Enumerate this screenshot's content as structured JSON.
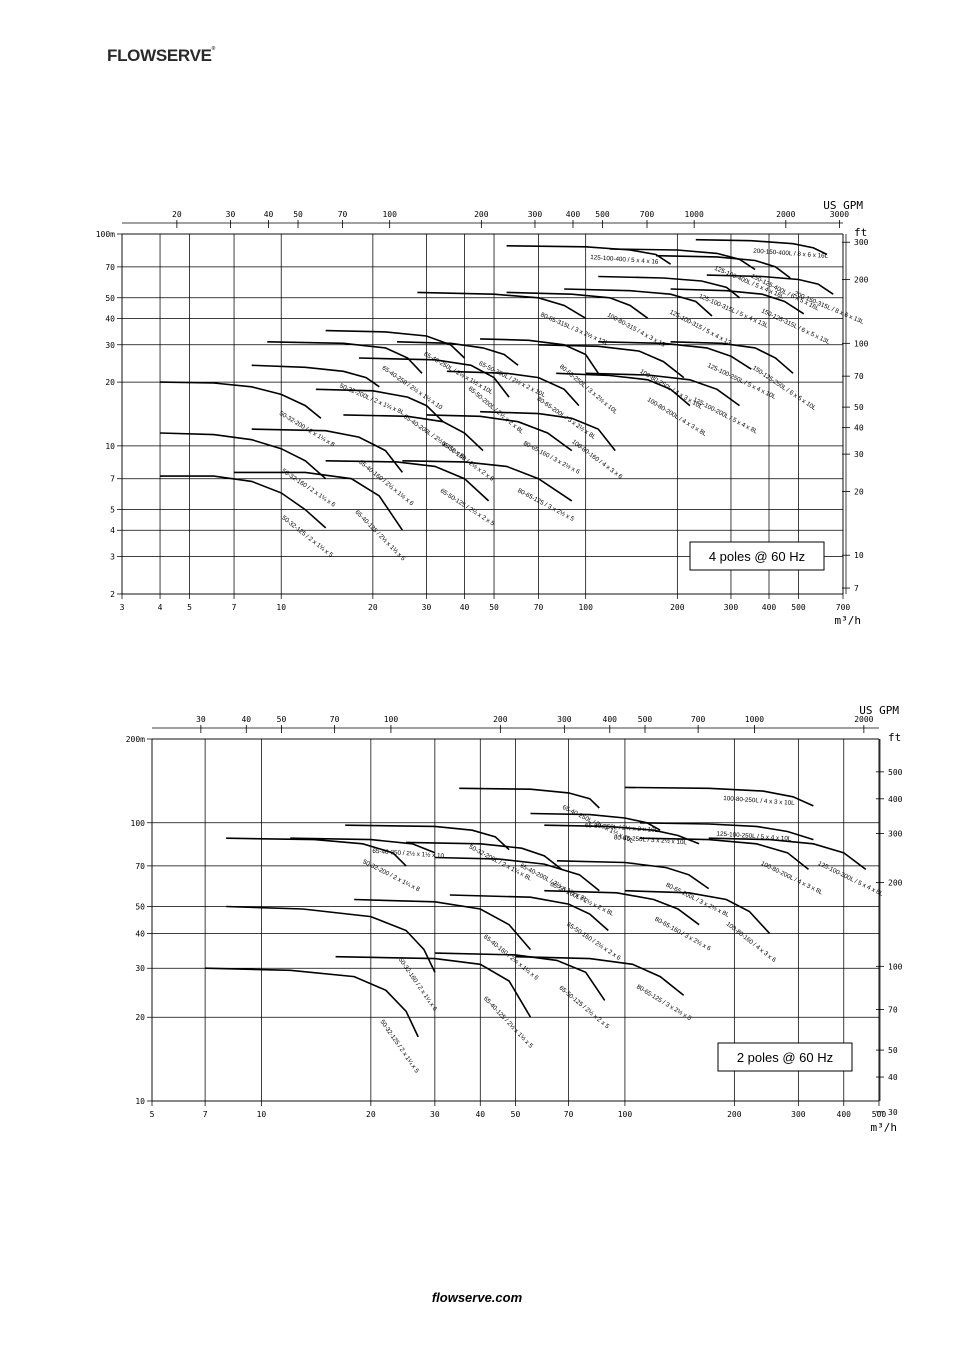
{
  "brand": "FLOWSERVE",
  "footer": "flowserve.com",
  "chart_data": [
    {
      "type": "line",
      "title": "4 poles @ 60 Hz",
      "xlabel": "m³/h",
      "ylabel": "m",
      "x2label": "US GPM",
      "y2label": "ft",
      "xscale": "log",
      "yscale": "log",
      "xlim": [
        3,
        700
      ],
      "ylim": [
        2,
        100
      ],
      "grid": true,
      "xticks": [
        3,
        4,
        5,
        7,
        10,
        20,
        30,
        40,
        50,
        70,
        100,
        200,
        300,
        400,
        500,
        700
      ],
      "yticks": [
        2,
        3,
        4,
        5,
        7,
        10,
        20,
        30,
        40,
        50,
        70,
        100
      ],
      "yticks_labels": [
        "2",
        "3",
        "4",
        "5",
        "7",
        "10",
        "20",
        "30",
        "40",
        "50",
        "70",
        "100m"
      ],
      "x2ticks": [
        20,
        30,
        40,
        50,
        70,
        100,
        200,
        300,
        400,
        500,
        700,
        1000,
        2000,
        3000
      ],
      "y2ticks": [
        7,
        10,
        20,
        30,
        40,
        50,
        70,
        100,
        200,
        300
      ],
      "series": [
        {
          "name": "50-32-125 / 2 x 1¼ x 5",
          "x": [
            4,
            6,
            8,
            10,
            12,
            14
          ],
          "y": [
            7.2,
            7.2,
            6.8,
            6,
            5,
            4.1
          ]
        },
        {
          "name": "50-32-160 / 2 x 1¼ x 6",
          "x": [
            4,
            6,
            8,
            10,
            12,
            14
          ],
          "y": [
            11.5,
            11.3,
            10.7,
            9.7,
            8.5,
            7
          ]
        },
        {
          "name": "50-32-200 / 2 x 1¼ x 8",
          "x": [
            4,
            6,
            8,
            10,
            12,
            13.5
          ],
          "y": [
            20,
            19.8,
            19,
            17.5,
            15.5,
            13.5
          ]
        },
        {
          "name": "50-32-200L / 2 x 1¼ x 8L",
          "x": [
            8,
            12,
            16,
            19,
            21
          ],
          "y": [
            24,
            23.5,
            22.5,
            21,
            19
          ]
        },
        {
          "name": "65-40-125 / 2½ x 1½ x 5",
          "x": [
            7,
            12,
            17,
            21,
            25
          ],
          "y": [
            7.5,
            7.5,
            7,
            5.8,
            4
          ]
        },
        {
          "name": "65-40-160 / 2½ x 1½ x 6",
          "x": [
            8,
            14,
            18,
            22,
            25
          ],
          "y": [
            12,
            11.8,
            11,
            9.5,
            7.5
          ]
        },
        {
          "name": "65-40-200L / 2½ x 1½ x 8L",
          "x": [
            13,
            20,
            26,
            30,
            34
          ],
          "y": [
            18.5,
            18.2,
            17,
            15.5,
            13
          ]
        },
        {
          "name": "65-40-250 / 2½ x 1½ x 10",
          "x": [
            9,
            16,
            22,
            26,
            29
          ],
          "y": [
            31,
            30.5,
            29,
            26,
            22
          ]
        },
        {
          "name": "65-40-250L / 2½ x 1½ x 10L",
          "x": [
            14,
            22,
            30,
            36,
            40
          ],
          "y": [
            35,
            34.5,
            33,
            30,
            26
          ]
        },
        {
          "name": "65-50-125 / 2½ x 2 x 5",
          "x": [
            14,
            24,
            32,
            40,
            48
          ],
          "y": [
            8.5,
            8.4,
            8,
            7,
            5.5
          ]
        },
        {
          "name": "65-50-160 / 2½ x 2 x 6",
          "x": [
            16,
            26,
            34,
            40,
            46
          ],
          "y": [
            14,
            13.8,
            13,
            11.5,
            9.5
          ]
        },
        {
          "name": "65-50-200L / 2½ x 2 x 8L",
          "x": [
            18,
            32,
            42,
            50,
            56
          ],
          "y": [
            26,
            25.5,
            24,
            21,
            17
          ]
        },
        {
          "name": "65-50-250L / 2½ x 2 x 10L",
          "x": [
            24,
            36,
            46,
            54,
            60
          ],
          "y": [
            31,
            30.5,
            29,
            27,
            24
          ]
        },
        {
          "name": "80-65-125 / 3 x 2½ x 5",
          "x": [
            25,
            40,
            55,
            70,
            90
          ],
          "y": [
            8.5,
            8.4,
            8,
            7,
            5.5
          ]
        },
        {
          "name": "80-65-160 / 3 x 2½ x 6",
          "x": [
            30,
            45,
            60,
            75,
            90
          ],
          "y": [
            14,
            13.8,
            13,
            11.5,
            9.5
          ]
        },
        {
          "name": "80-65-200L / 3 x 2½ x 8L",
          "x": [
            35,
            55,
            70,
            85,
            95
          ],
          "y": [
            22.5,
            22,
            21,
            18.5,
            15.5
          ]
        },
        {
          "name": "80-65-250L / 3 x 2½ x 10L",
          "x": [
            45,
            65,
            85,
            100,
            110
          ],
          "y": [
            32,
            31.5,
            30,
            27,
            22
          ]
        },
        {
          "name": "80-65-315L / 3 x 2½ x 13L",
          "x": [
            28,
            50,
            70,
            85,
            100
          ],
          "y": [
            53,
            52,
            50,
            46,
            40
          ]
        },
        {
          "name": "100-80-160 / 4 x 3 x 6",
          "x": [
            45,
            70,
            90,
            110,
            125
          ],
          "y": [
            14.5,
            14.2,
            13.5,
            12,
            9.5
          ]
        },
        {
          "name": "100-80-250L / 4 x 3 x 10L",
          "x": [
            70,
            110,
            150,
            180,
            210
          ],
          "y": [
            30,
            29.5,
            28,
            25,
            21
          ]
        },
        {
          "name": "100-80-315 / 4 x 3 x 13",
          "x": [
            55,
            90,
            120,
            140,
            160
          ],
          "y": [
            53,
            52,
            50,
            46,
            40
          ]
        },
        {
          "name": "100-80-200L / 4 x 3 x 8L",
          "x": [
            80,
            120,
            160,
            190,
            220
          ],
          "y": [
            22,
            21.5,
            20.5,
            18.5,
            15.5
          ]
        },
        {
          "name": "125-100-200L / 5 x 4 x 8L",
          "x": [
            100,
            160,
            220,
            270,
            320
          ],
          "y": [
            22,
            21.6,
            20.5,
            18.5,
            15.5
          ]
        },
        {
          "name": "125-100-250L / 5 x 4 x 10L",
          "x": [
            110,
            180,
            250,
            300,
            350
          ],
          "y": [
            31,
            30.5,
            29,
            26.5,
            23
          ]
        },
        {
          "name": "125-100-315 / 5 x 4 x 13",
          "x": [
            85,
            140,
            190,
            230,
            260
          ],
          "y": [
            55,
            54,
            52,
            48,
            41
          ]
        },
        {
          "name": "125-100-315L / 5 x 4 x 13L",
          "x": [
            110,
            180,
            240,
            290,
            320
          ],
          "y": [
            63,
            62,
            60,
            56,
            50
          ]
        },
        {
          "name": "125-100-400 / 5 x 4 x 16",
          "x": [
            55,
            100,
            140,
            170,
            190
          ],
          "y": [
            88,
            87,
            84,
            80,
            72
          ]
        },
        {
          "name": "125-100-400L / 5 x 4 x 16L",
          "x": [
            120,
            200,
            270,
            320,
            360
          ],
          "y": [
            85,
            84,
            81,
            76,
            68
          ]
        },
        {
          "name": "150-125-250L / 6 x 5 x 10L",
          "x": [
            190,
            280,
            360,
            420,
            480
          ],
          "y": [
            31,
            30.5,
            29,
            26,
            22
          ]
        },
        {
          "name": "150-125-315L / 6 x 5 x 13L",
          "x": [
            190,
            290,
            380,
            450,
            520
          ],
          "y": [
            55,
            54,
            52,
            48,
            42
          ]
        },
        {
          "name": "150-125-400L / 6 x 5 x 16L",
          "x": [
            170,
            270,
            360,
            420,
            470
          ],
          "y": [
            79,
            78,
            75,
            70,
            62
          ]
        },
        {
          "name": "200-150-315L / 8 x 6 x 13L",
          "x": [
            250,
            380,
            500,
            580,
            650
          ],
          "y": [
            64,
            63,
            61,
            58,
            52
          ]
        },
        {
          "name": "200-150-400L / 8 x 6 x 16L",
          "x": [
            230,
            350,
            480,
            560,
            620
          ],
          "y": [
            94,
            93,
            90,
            86,
            80
          ]
        }
      ]
    },
    {
      "type": "line",
      "title": "2 poles @ 60 Hz",
      "xlabel": "m³/h",
      "ylabel": "m",
      "x2label": "US GPM",
      "y2label": "ft",
      "xscale": "log",
      "yscale": "log",
      "xlim": [
        5,
        500
      ],
      "ylim": [
        10,
        200
      ],
      "grid": true,
      "xticks": [
        5,
        7,
        10,
        20,
        30,
        40,
        50,
        70,
        100,
        200,
        300,
        400,
        500
      ],
      "yticks": [
        10,
        20,
        30,
        40,
        50,
        70,
        100,
        200
      ],
      "yticks_labels": [
        "10",
        "20",
        "30",
        "40",
        "50",
        "70",
        "100",
        "200m"
      ],
      "x2ticks": [
        30,
        40,
        50,
        70,
        100,
        200,
        300,
        400,
        500,
        700,
        1000,
        2000
      ],
      "y2ticks": [
        30,
        40,
        50,
        70,
        100,
        200,
        300,
        400,
        500
      ],
      "series": [
        {
          "name": "50-32-125 / 2 x 1¼ x 5",
          "x": [
            7,
            12,
            18,
            22,
            25,
            27
          ],
          "y": [
            30,
            29.5,
            28,
            25,
            21,
            17
          ]
        },
        {
          "name": "50-32-160 / 2 x 1¼ x 6",
          "x": [
            8,
            13,
            20,
            25,
            28,
            30
          ],
          "y": [
            50,
            49,
            46,
            41,
            35,
            29
          ]
        },
        {
          "name": "50-32-200 / 2 x 1¼ x 8",
          "x": [
            8,
            14,
            19,
            23,
            25
          ],
          "y": [
            88,
            87,
            84,
            78,
            70
          ]
        },
        {
          "name": "50-32-200L / 2 x 1¼ x 8L",
          "x": [
            17,
            30,
            38,
            44,
            48
          ],
          "y": [
            98,
            97,
            94,
            89,
            80
          ]
        },
        {
          "name": "65-40-125 / 2½ x 1½ x 5",
          "x": [
            16,
            30,
            40,
            48,
            55
          ],
          "y": [
            33,
            32.5,
            31,
            27,
            20
          ]
        },
        {
          "name": "65-40-160 / 2½ x 1½ x 6",
          "x": [
            18,
            30,
            40,
            48,
            55
          ],
          "y": [
            53,
            52,
            49,
            43,
            35
          ]
        },
        {
          "name": "65-40-200L / 2½ x 1½ x 8L",
          "x": [
            25,
            40,
            52,
            60,
            67
          ],
          "y": [
            85,
            84,
            81,
            76,
            68
          ]
        },
        {
          "name": "65-40-250 / 2½ x 1½ x 10",
          "x": [
            12,
            20,
            26,
            30
          ],
          "y": [
            88,
            87,
            84,
            78
          ]
        },
        {
          "name": "65-40-250L / 2½ x 1½ x 10L",
          "x": [
            35,
            55,
            70,
            80,
            85
          ],
          "y": [
            133,
            132,
            128,
            122,
            113
          ]
        },
        {
          "name": "65-50-125 / 2½ x 2 x 5",
          "x": [
            30,
            50,
            65,
            78,
            88
          ],
          "y": [
            34,
            33.5,
            32,
            29,
            23
          ]
        },
        {
          "name": "65-50-160 / 2½ x 2 x 6",
          "x": [
            33,
            55,
            70,
            80,
            90
          ],
          "y": [
            55,
            54,
            51,
            47,
            41
          ]
        },
        {
          "name": "65-50-200L / 2½ x 2 x 8L",
          "x": [
            30,
            45,
            60,
            75,
            85
          ],
          "y": [
            75,
            74,
            71,
            65,
            57
          ]
        },
        {
          "name": "65-50-250L / 2½ x 2 x 10L",
          "x": [
            55,
            80,
            100,
            115,
            125
          ],
          "y": [
            108,
            107,
            104,
            100,
            94
          ]
        },
        {
          "name": "80-65-125 / 3 x 2½ x 5",
          "x": [
            50,
            80,
            105,
            125,
            145
          ],
          "y": [
            33,
            32.5,
            31,
            28,
            24
          ]
        },
        {
          "name": "80-65-160 / 3 x 2½ x 6",
          "x": [
            60,
            95,
            120,
            140,
            160
          ],
          "y": [
            57,
            56,
            53,
            49,
            43
          ]
        },
        {
          "name": "80-65-200L / 3 x 2½ x 8L",
          "x": [
            65,
            100,
            130,
            150,
            170
          ],
          "y": [
            73,
            72,
            69,
            65,
            58
          ]
        },
        {
          "name": "80-65-250L / 3 x 2½ x 10L",
          "x": [
            60,
            90,
            120,
            140,
            160
          ],
          "y": [
            98,
            97,
            94,
            90,
            84
          ]
        },
        {
          "name": "100-80-160 / 4 x 3 x 6",
          "x": [
            100,
            150,
            190,
            220,
            250
          ],
          "y": [
            57,
            56,
            53,
            48,
            40
          ]
        },
        {
          "name": "100-80-200L / 4 x 3 x 8L",
          "x": [
            110,
            170,
            230,
            280,
            320
          ],
          "y": [
            88,
            87,
            84,
            78,
            68
          ]
        },
        {
          "name": "100-80-250L / 4 x 3 x 10L",
          "x": [
            100,
            170,
            240,
            290,
            330
          ],
          "y": [
            134,
            133,
            130,
            124,
            115
          ]
        },
        {
          "name": "125-100-200L / 5 x 4 x 8L",
          "x": [
            170,
            250,
            330,
            400,
            460
          ],
          "y": [
            88,
            87,
            84,
            78,
            68
          ]
        },
        {
          "name": "125-100-250L / 5 x 4 x 10L",
          "x": [
            110,
            170,
            230,
            280,
            330
          ],
          "y": [
            100,
            99,
            97,
            93,
            87
          ]
        }
      ]
    }
  ]
}
